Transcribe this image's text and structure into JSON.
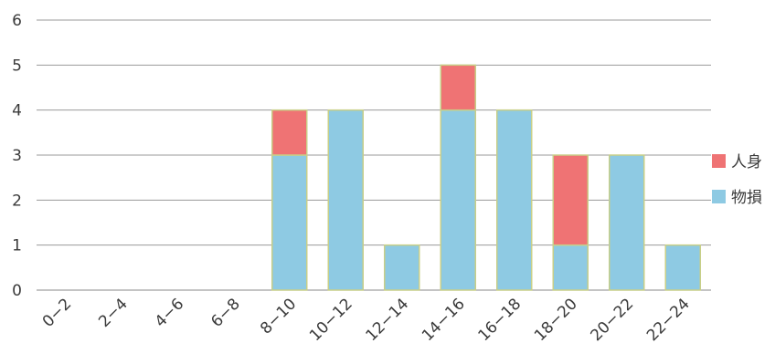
{
  "chart_data": {
    "type": "bar",
    "stacked": true,
    "categories": [
      "0−2",
      "2−4",
      "4−6",
      "6−8",
      "8−10",
      "10−12",
      "12−14",
      "14−16",
      "16−18",
      "18−20",
      "20−22",
      "22−24"
    ],
    "series": [
      {
        "name": "物損",
        "color": "#8ecae3",
        "values": [
          0,
          0,
          0,
          0,
          3,
          4,
          1,
          4,
          4,
          1,
          3,
          1
        ]
      },
      {
        "name": "人身",
        "color": "#ef7374",
        "values": [
          0,
          0,
          0,
          0,
          1,
          0,
          0,
          1,
          0,
          2,
          0,
          0
        ]
      }
    ],
    "ylim": [
      0,
      6
    ],
    "yticks": [
      0,
      1,
      2,
      3,
      4,
      5,
      6
    ],
    "grid": true,
    "legend_position": "right",
    "legend_order": [
      "人身",
      "物損"
    ],
    "bar_border_color": "#c8cf88",
    "title": "",
    "xlabel": "",
    "ylabel": ""
  }
}
